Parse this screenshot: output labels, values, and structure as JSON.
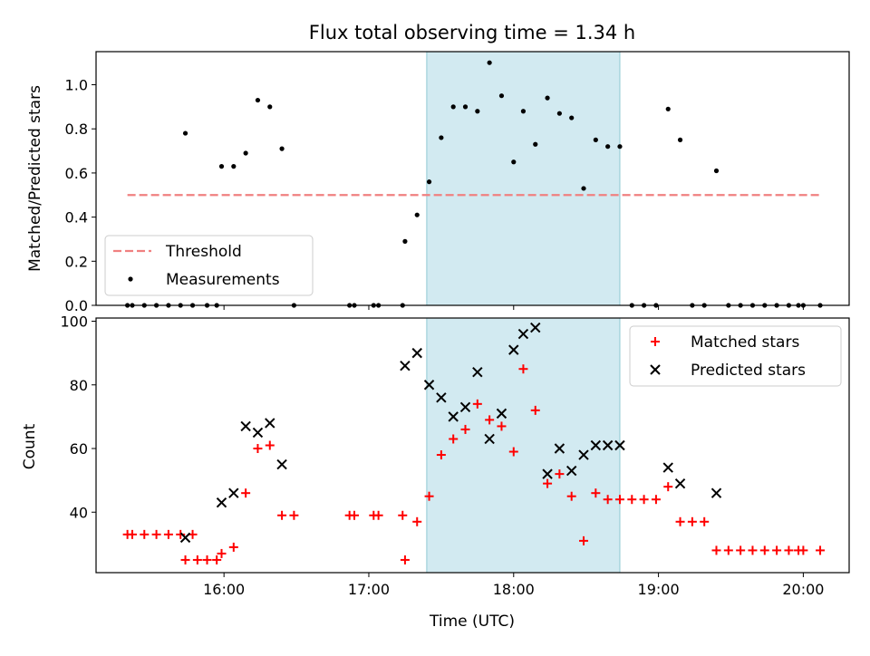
{
  "title": "Flux total observing time = 1.34 h",
  "colors": {
    "threshold": "#f08080",
    "measurement": "#000000",
    "matched": "#ff0000",
    "predicted": "#000000",
    "shade": "#add8e6"
  },
  "chart_data": [
    {
      "type": "scatter",
      "name": "top-panel",
      "ylabel": "Matched/Predicted stars",
      "ylim": [
        0,
        1.15
      ],
      "yticks": [
        "0.0",
        "0.2",
        "0.4",
        "0.6",
        "0.8",
        "1.0"
      ],
      "xrange": [
        "15:07",
        "20:19"
      ],
      "shaded_interval": [
        "17:24",
        "18:44"
      ],
      "legend": {
        "position": "lower-left",
        "entries": [
          "Threshold",
          "Measurements"
        ]
      },
      "threshold": {
        "name": "Threshold",
        "y": 0.5,
        "x": [
          "15:20",
          "20:07"
        ]
      },
      "series": [
        {
          "name": "Measurements",
          "points": [
            [
              "15:20",
              0
            ],
            [
              "15:22",
              0
            ],
            [
              "15:27",
              0
            ],
            [
              "15:32",
              0
            ],
            [
              "15:37",
              0
            ],
            [
              "15:42",
              0
            ],
            [
              "15:47",
              0
            ],
            [
              "15:44",
              0.78
            ],
            [
              "15:53",
              0
            ],
            [
              "15:57",
              0
            ],
            [
              "15:59",
              0.63
            ],
            [
              "16:04",
              0.63
            ],
            [
              "16:09",
              0.69
            ],
            [
              "16:14",
              0.93
            ],
            [
              "16:19",
              0.9
            ],
            [
              "16:24",
              0.71
            ],
            [
              "16:29",
              0
            ],
            [
              "16:52",
              0
            ],
            [
              "16:54",
              0
            ],
            [
              "17:02",
              0
            ],
            [
              "17:04",
              0
            ],
            [
              "17:14",
              0
            ],
            [
              "17:15",
              0.29
            ],
            [
              "17:20",
              0.41
            ],
            [
              "17:25",
              0.56
            ],
            [
              "17:30",
              0.76
            ],
            [
              "17:35",
              0.9
            ],
            [
              "17:40",
              0.9
            ],
            [
              "17:45",
              0.88
            ],
            [
              "17:50",
              1.1
            ],
            [
              "17:55",
              0.95
            ],
            [
              "18:00",
              0.65
            ],
            [
              "18:04",
              0.88
            ],
            [
              "18:09",
              0.73
            ],
            [
              "18:14",
              0.94
            ],
            [
              "18:19",
              0.87
            ],
            [
              "18:24",
              0.85
            ],
            [
              "18:29",
              0.53
            ],
            [
              "18:34",
              0.75
            ],
            [
              "18:39",
              0.72
            ],
            [
              "18:44",
              0.72
            ],
            [
              "18:49",
              0
            ],
            [
              "18:54",
              0
            ],
            [
              "18:59",
              0
            ],
            [
              "19:04",
              0.89
            ],
            [
              "19:09",
              0.75
            ],
            [
              "19:14",
              0
            ],
            [
              "19:19",
              0
            ],
            [
              "19:24",
              0.61
            ],
            [
              "19:29",
              0
            ],
            [
              "19:34",
              0
            ],
            [
              "19:39",
              0
            ],
            [
              "19:44",
              0
            ],
            [
              "19:49",
              0
            ],
            [
              "19:54",
              0
            ],
            [
              "19:58",
              0
            ],
            [
              "20:00",
              0
            ],
            [
              "20:07",
              0
            ]
          ]
        }
      ]
    },
    {
      "type": "scatter",
      "name": "bottom-panel",
      "xlabel": "Time (UTC)",
      "ylabel": "Count",
      "ylim": [
        21,
        101
      ],
      "yticks": [
        "40",
        "60",
        "80",
        "100"
      ],
      "xticks": [
        "16:00",
        "17:00",
        "18:00",
        "19:00",
        "20:00"
      ],
      "xrange": [
        "15:07",
        "20:19"
      ],
      "shaded_interval": [
        "17:24",
        "18:44"
      ],
      "legend": {
        "position": "upper-right",
        "entries": [
          "Matched stars",
          "Predicted stars"
        ]
      },
      "series": [
        {
          "name": "Matched stars",
          "marker": "plus",
          "points": [
            [
              "15:20",
              33
            ],
            [
              "15:22",
              33
            ],
            [
              "15:27",
              33
            ],
            [
              "15:32",
              33
            ],
            [
              "15:37",
              33
            ],
            [
              "15:42",
              33
            ],
            [
              "15:47",
              33
            ],
            [
              "15:44",
              25
            ],
            [
              "15:49",
              25
            ],
            [
              "15:53",
              25
            ],
            [
              "15:57",
              25
            ],
            [
              "15:59",
              27
            ],
            [
              "16:04",
              29
            ],
            [
              "16:09",
              46
            ],
            [
              "16:14",
              60
            ],
            [
              "16:19",
              61
            ],
            [
              "16:24",
              39
            ],
            [
              "16:29",
              39
            ],
            [
              "16:52",
              39
            ],
            [
              "16:54",
              39
            ],
            [
              "17:02",
              39
            ],
            [
              "17:04",
              39
            ],
            [
              "17:14",
              39
            ],
            [
              "17:15",
              25
            ],
            [
              "17:20",
              37
            ],
            [
              "17:25",
              45
            ],
            [
              "17:30",
              58
            ],
            [
              "17:35",
              63
            ],
            [
              "17:40",
              66
            ],
            [
              "17:45",
              74
            ],
            [
              "17:50",
              69
            ],
            [
              "17:55",
              67
            ],
            [
              "18:00",
              59
            ],
            [
              "18:04",
              85
            ],
            [
              "18:09",
              72
            ],
            [
              "18:14",
              49
            ],
            [
              "18:19",
              52
            ],
            [
              "18:24",
              45
            ],
            [
              "18:29",
              31
            ],
            [
              "18:34",
              46
            ],
            [
              "18:39",
              44
            ],
            [
              "18:44",
              44
            ],
            [
              "18:49",
              44
            ],
            [
              "18:54",
              44
            ],
            [
              "18:59",
              44
            ],
            [
              "19:04",
              48
            ],
            [
              "19:09",
              37
            ],
            [
              "19:14",
              37
            ],
            [
              "19:19",
              37
            ],
            [
              "19:24",
              28
            ],
            [
              "19:29",
              28
            ],
            [
              "19:34",
              28
            ],
            [
              "19:39",
              28
            ],
            [
              "19:44",
              28
            ],
            [
              "19:49",
              28
            ],
            [
              "19:54",
              28
            ],
            [
              "19:58",
              28
            ],
            [
              "20:00",
              28
            ],
            [
              "20:07",
              28
            ]
          ]
        },
        {
          "name": "Predicted stars",
          "marker": "x",
          "points": [
            [
              "15:44",
              32
            ],
            [
              "15:59",
              43
            ],
            [
              "16:04",
              46
            ],
            [
              "16:09",
              67
            ],
            [
              "16:14",
              65
            ],
            [
              "16:19",
              68
            ],
            [
              "16:24",
              55
            ],
            [
              "17:15",
              86
            ],
            [
              "17:20",
              90
            ],
            [
              "17:25",
              80
            ],
            [
              "17:30",
              76
            ],
            [
              "17:35",
              70
            ],
            [
              "17:40",
              73
            ],
            [
              "17:45",
              84
            ],
            [
              "17:50",
              63
            ],
            [
              "17:55",
              71
            ],
            [
              "18:00",
              91
            ],
            [
              "18:04",
              96
            ],
            [
              "18:09",
              98
            ],
            [
              "18:14",
              52
            ],
            [
              "18:19",
              60
            ],
            [
              "18:24",
              53
            ],
            [
              "18:29",
              58
            ],
            [
              "18:34",
              61
            ],
            [
              "18:39",
              61
            ],
            [
              "18:44",
              61
            ],
            [
              "19:04",
              54
            ],
            [
              "19:09",
              49
            ],
            [
              "19:24",
              46
            ]
          ]
        }
      ]
    }
  ]
}
